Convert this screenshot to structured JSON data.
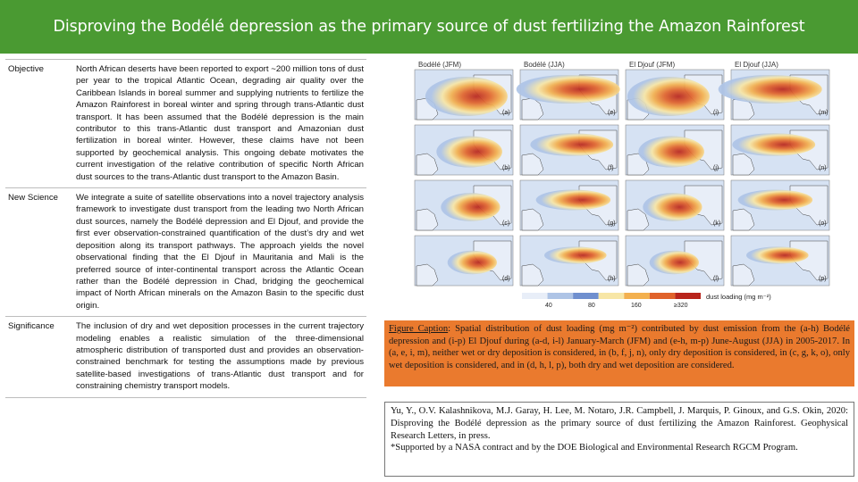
{
  "title": "Disproving the Bodélé depression as the primary source of dust fertilizing the Amazon Rainforest",
  "rows": [
    {
      "label": "Objective",
      "text": "North African deserts have been reported to export ~200 million tons of dust per year to the tropical Atlantic Ocean, degrading air quality over the Caribbean Islands in boreal summer and supplying nutrients to fertilize the Amazon Rainforest in boreal winter and spring through trans-Atlantic dust transport. It has been assumed that the Bodélé depression is the main contributor to this trans-Atlantic dust transport and Amazonian dust fertilization in boreal winter. However, these claims have not been supported by geochemical analysis. This ongoing debate motivates the current investigation of the relative contribution of specific North African dust sources to the trans-Atlantic dust transport to the Amazon Basin."
    },
    {
      "label": "New Science",
      "text": "We integrate a suite of satellite observations into a novel trajectory analysis framework to investigate dust transport from the leading two North African dust sources, namely the Bodélé depression and El Djouf, and provide the first ever observation-constrained quantification of the dust’s dry and wet deposition along its transport pathways. The approach yields the novel observational finding that the El Djouf in Mauritania and Mali is the preferred source of inter-continental transport across the Atlantic Ocean rather than the Bodélé depression in Chad, bridging the geochemical impact of North African minerals on the Amazon Basin to the specific dust origin."
    },
    {
      "label": "Significance",
      "text": "The inclusion of dry and wet deposition processes in the current trajectory modeling enables a realistic simulation of the three-dimensional atmospheric distribution of transported dust and provides an observation-constrained benchmark for testing the assumptions made by previous satellite-based investigations of trans-Atlantic dust transport and for constraining chemistry transport models."
    }
  ],
  "figure": {
    "column_titles": [
      "Bodélé (JFM)",
      "Bodélé (JJA)",
      "El Djouf (JFM)",
      "El Djouf (JJA)"
    ],
    "panel_letters": [
      [
        "a",
        "e",
        "i",
        "m"
      ],
      [
        "b",
        "f",
        "j",
        "n"
      ],
      [
        "c",
        "g",
        "k",
        "o"
      ],
      [
        "d",
        "h",
        "l",
        "p"
      ]
    ],
    "colorbar_ticks": [
      "40",
      "80",
      "160",
      "≥320"
    ],
    "colorbar_colors": [
      "#e8eef8",
      "#aec4e6",
      "#6f8fcf",
      "#f7e6a6",
      "#f3b04e",
      "#e0622a",
      "#b8241b"
    ],
    "colorbar_label": "dust loading (mg m⁻²)"
  },
  "caption": {
    "label": "Figure Caption",
    "text": ": Spatial distribution of dust loading (mg m⁻²) contributed by dust emission from the (a-h) Bodélé depression and (i-p) El Djouf during (a-d, i-l) January-March (JFM) and (e-h, m-p) June-August (JJA) in 2005-2017. In (a, e, i, m), neither wet or dry deposition is considered, in (b, f, j, n), only dry deposition is considered, in (c, g, k, o), only wet deposition is considered, and in (d, h, l, p), both dry and wet deposition are considered."
  },
  "citation": {
    "text": "Yu, Y., O.V. Kalashnikova, M.J. Garay, H. Lee, M. Notaro, J.R. Campbell, J. Marquis, P. Ginoux, and G.S. Okin, 2020: Disproving the Bodélé depression as the primary source of dust fertilizing the Amazon Rainforest. Geophysical Research Letters, in press.",
    "note": "*Supported by a NASA contract and by the DOE Biological and Environmental Research RGCM Program."
  },
  "colors": {
    "title_bar": "#4a9a32",
    "caption_bg": "#ea7a2e",
    "ocean": "#d6e2f3",
    "dust_high": "#b8241b"
  }
}
